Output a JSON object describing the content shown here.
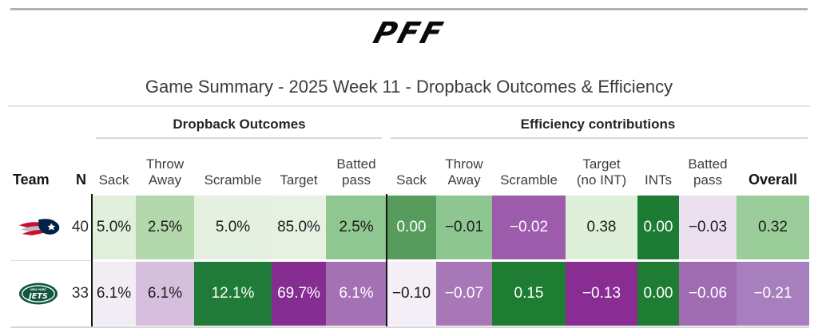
{
  "logo_text": "PFF",
  "title": "Game Summary - 2025 Week 11 - Dropback Outcomes & Efficiency",
  "table": {
    "groups": [
      {
        "label": "Dropback Outcomes"
      },
      {
        "label": "Efficiency contributions"
      }
    ],
    "columns": [
      {
        "label": "Team"
      },
      {
        "label": "N"
      },
      {
        "label": "Sack"
      },
      {
        "label": "Throw\nAway"
      },
      {
        "label": "Scramble"
      },
      {
        "label": "Target"
      },
      {
        "label": "Batted\npass"
      },
      {
        "label": "Sack"
      },
      {
        "label": "Throw\nAway"
      },
      {
        "label": "Scramble"
      },
      {
        "label": "Target\n(no INT)"
      },
      {
        "label": "INTs"
      },
      {
        "label": "Batted\npass"
      },
      {
        "label": "Overall"
      }
    ],
    "rows": [
      {
        "team_icon": "patriots-logo",
        "n": "40",
        "cells": [
          {
            "text": "5.0%",
            "bg": "#e1efdd",
            "fg": "#1c1c1c"
          },
          {
            "text": "2.5%",
            "bg": "#b3d8ab",
            "fg": "#1c1c1c"
          },
          {
            "text": "5.0%",
            "bg": "#e4f0e0",
            "fg": "#1c1c1c"
          },
          {
            "text": "85.0%",
            "bg": "#e6f1e2",
            "fg": "#1c1c1c"
          },
          {
            "text": "2.5%",
            "bg": "#8fc791",
            "fg": "#1c1c1c"
          },
          {
            "text": "0.00",
            "bg": "#579c5d",
            "fg": "#ffffff"
          },
          {
            "text": "−0.01",
            "bg": "#8ec692",
            "fg": "#1c1c1c"
          },
          {
            "text": "−0.02",
            "bg": "#9c5cab",
            "fg": "#ffffff"
          },
          {
            "text": "0.38",
            "bg": "#def0d9",
            "fg": "#1c1c1c"
          },
          {
            "text": "0.00",
            "bg": "#1d7c34",
            "fg": "#ffffff"
          },
          {
            "text": "−0.03",
            "bg": "#ebdff0",
            "fg": "#1c1c1c"
          },
          {
            "text": "0.32",
            "bg": "#9acd99",
            "fg": "#1c1c1c"
          }
        ]
      },
      {
        "team_icon": "jets-logo",
        "n": "33",
        "cells": [
          {
            "text": "6.1%",
            "bg": "#f2ecf4",
            "fg": "#1c1c1c"
          },
          {
            "text": "6.1%",
            "bg": "#d5bfdd",
            "fg": "#1c1c1c"
          },
          {
            "text": "12.1%",
            "bg": "#217b38",
            "fg": "#ffffff"
          },
          {
            "text": "69.7%",
            "bg": "#852d91",
            "fg": "#ffffff"
          },
          {
            "text": "6.1%",
            "bg": "#a471b5",
            "fg": "#ffffff"
          },
          {
            "text": "−0.10",
            "bg": "#f4eef6",
            "fg": "#1c1c1c"
          },
          {
            "text": "−0.07",
            "bg": "#a877b8",
            "fg": "#ffffff"
          },
          {
            "text": "0.15",
            "bg": "#1f7d33",
            "fg": "#ffffff"
          },
          {
            "text": "−0.13",
            "bg": "#8a2d93",
            "fg": "#ffffff"
          },
          {
            "text": "0.00",
            "bg": "#1f7d33",
            "fg": "#ffffff"
          },
          {
            "text": "−0.06",
            "bg": "#a06cb1",
            "fg": "#ffffff"
          },
          {
            "text": "−0.21",
            "bg": "#a77fbe",
            "fg": "#ffffff"
          }
        ]
      }
    ]
  },
  "chart_data": {
    "type": "table",
    "title": "Game Summary - 2025 Week 11 - Dropback Outcomes & Efficiency",
    "column_groups": [
      "Dropback Outcomes",
      "Efficiency contributions"
    ],
    "columns": [
      "Team",
      "N",
      "Sack",
      "Throw Away",
      "Scramble",
      "Target",
      "Batted pass",
      "Sack",
      "Throw Away",
      "Scramble",
      "Target (no INT)",
      "INTs",
      "Batted pass",
      "Overall"
    ],
    "rows": [
      {
        "team": "New England Patriots",
        "n": 40,
        "dropback_outcomes": {
          "sack_pct": 5.0,
          "throw_away_pct": 2.5,
          "scramble_pct": 5.0,
          "target_pct": 85.0,
          "batted_pass_pct": 2.5
        },
        "efficiency_contributions": {
          "sack": 0.0,
          "throw_away": -0.01,
          "scramble": -0.02,
          "target_no_int": 0.38,
          "ints": 0.0,
          "batted_pass": -0.03,
          "overall": 0.32
        }
      },
      {
        "team": "New York Jets",
        "n": 33,
        "dropback_outcomes": {
          "sack_pct": 6.1,
          "throw_away_pct": 6.1,
          "scramble_pct": 12.1,
          "target_pct": 69.7,
          "batted_pass_pct": 6.1
        },
        "efficiency_contributions": {
          "sack": -0.1,
          "throw_away": -0.07,
          "scramble": 0.15,
          "target_no_int": -0.13,
          "ints": 0.0,
          "batted_pass": -0.06,
          "overall": -0.21
        }
      }
    ],
    "legend_note": "diverging heatmap shading",
    "colors": {
      "positive_green_dark": "#1f7d33",
      "positive_green_light": "#e4f0e0",
      "negative_purple_dark": "#852d91",
      "negative_purple_light": "#f2ecf4"
    }
  }
}
